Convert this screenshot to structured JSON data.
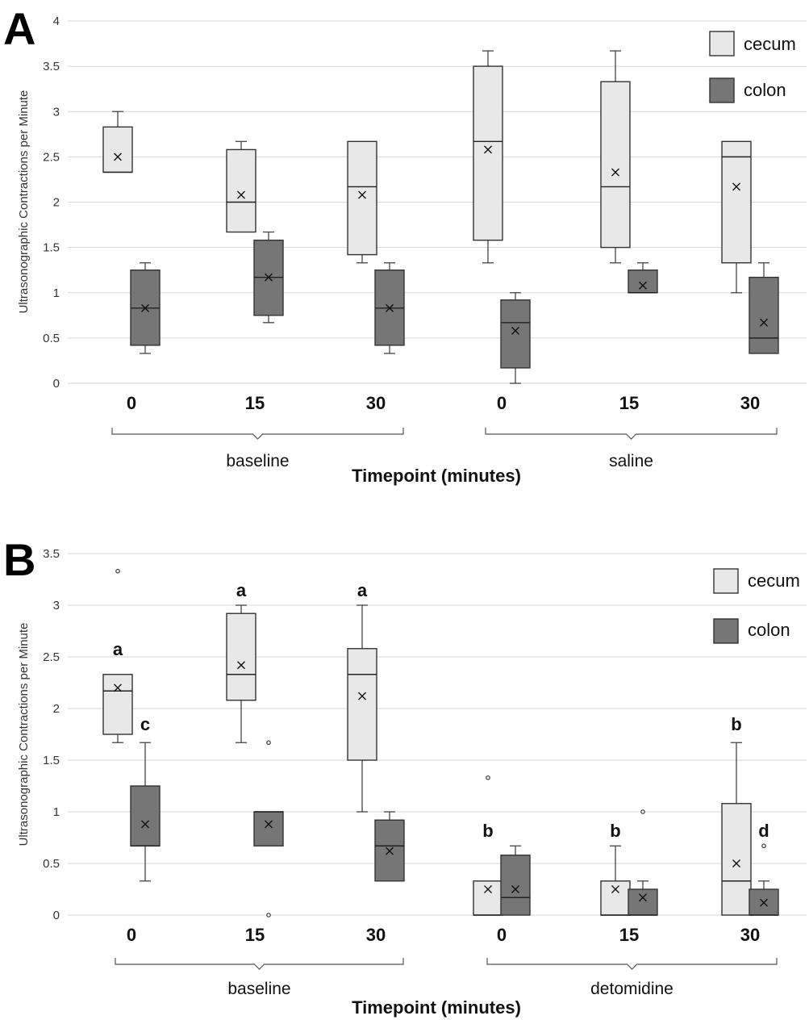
{
  "chart_data": [
    {
      "type": "box",
      "panel_label": "A",
      "ylabel": "Ultrasonographic Contractions per Minute",
      "xlabel": "Timepoint (minutes)",
      "ylim": [
        0,
        4
      ],
      "yticks": [
        "0",
        "0.5",
        "1",
        "1.5",
        "2",
        "2.5",
        "3",
        "3.5",
        "4"
      ],
      "ytick_values": [
        0,
        0.5,
        1,
        1.5,
        2,
        2.5,
        3,
        3.5,
        4
      ],
      "grid": true,
      "legend_position": "top-right",
      "categories": [
        "0",
        "15",
        "30",
        "0",
        "15",
        "30"
      ],
      "groups": [
        {
          "label": "baseline",
          "categories": [
            0,
            1,
            2
          ]
        },
        {
          "label": "saline",
          "categories": [
            3,
            4,
            5
          ]
        }
      ],
      "series": [
        {
          "name": "cecum",
          "color": "#e8e8e8",
          "boxes": [
            {
              "min": 2.33,
              "q1": 2.33,
              "median": 2.33,
              "q3": 2.83,
              "max": 3.0,
              "mean": 2.5,
              "outliers": []
            },
            {
              "min": 1.67,
              "q1": 1.67,
              "median": 2.0,
              "q3": 2.58,
              "max": 2.67,
              "mean": 2.08,
              "outliers": []
            },
            {
              "min": 1.33,
              "q1": 1.42,
              "median": 2.17,
              "q3": 2.67,
              "max": 2.67,
              "mean": 2.08,
              "outliers": []
            },
            {
              "min": 1.33,
              "q1": 1.58,
              "median": 2.67,
              "q3": 3.5,
              "max": 3.67,
              "mean": 2.58,
              "outliers": []
            },
            {
              "min": 1.33,
              "q1": 1.5,
              "median": 2.17,
              "q3": 3.33,
              "max": 3.67,
              "mean": 2.33,
              "outliers": []
            },
            {
              "min": 1.0,
              "q1": 1.33,
              "median": 2.5,
              "q3": 2.67,
              "max": 2.67,
              "mean": 2.17,
              "outliers": []
            }
          ]
        },
        {
          "name": "colon",
          "color": "#767676",
          "boxes": [
            {
              "min": 0.33,
              "q1": 0.42,
              "median": 0.83,
              "q3": 1.25,
              "max": 1.33,
              "mean": 0.83,
              "outliers": []
            },
            {
              "min": 0.67,
              "q1": 0.75,
              "median": 1.17,
              "q3": 1.58,
              "max": 1.67,
              "mean": 1.17,
              "outliers": []
            },
            {
              "min": 0.33,
              "q1": 0.42,
              "median": 0.83,
              "q3": 1.25,
              "max": 1.33,
              "mean": 0.83,
              "outliers": []
            },
            {
              "min": 0.0,
              "q1": 0.17,
              "median": 0.67,
              "q3": 0.92,
              "max": 1.0,
              "mean": 0.58,
              "outliers": []
            },
            {
              "min": 1.0,
              "q1": 1.0,
              "median": 1.0,
              "q3": 1.25,
              "max": 1.33,
              "mean": 1.08,
              "outliers": []
            },
            {
              "min": 0.33,
              "q1": 0.33,
              "median": 0.5,
              "q3": 1.17,
              "max": 1.33,
              "mean": 0.67,
              "outliers": []
            }
          ]
        }
      ],
      "annotations": []
    },
    {
      "type": "box",
      "panel_label": "B",
      "ylabel": "Ultrasonographic Contractions per Minute",
      "xlabel": "Timepoint (minutes)",
      "ylim": [
        0,
        3.5
      ],
      "yticks": [
        "0",
        "0.5",
        "1",
        "1.5",
        "2",
        "2.5",
        "3",
        "3.5"
      ],
      "ytick_values": [
        0,
        0.5,
        1,
        1.5,
        2,
        2.5,
        3,
        3.5
      ],
      "grid": true,
      "legend_position": "top-right",
      "categories": [
        "0",
        "15",
        "30",
        "0",
        "15",
        "30"
      ],
      "groups": [
        {
          "label": "baseline",
          "categories": [
            0,
            1,
            2
          ]
        },
        {
          "label": "detomidine",
          "categories": [
            3,
            4,
            5
          ]
        }
      ],
      "series": [
        {
          "name": "cecum",
          "color": "#e8e8e8",
          "boxes": [
            {
              "min": 1.67,
              "q1": 1.75,
              "median": 2.17,
              "q3": 2.33,
              "max": 2.33,
              "mean": 2.2,
              "outliers": [
                3.33
              ]
            },
            {
              "min": 1.67,
              "q1": 2.08,
              "median": 2.33,
              "q3": 2.92,
              "max": 3.0,
              "mean": 2.42,
              "outliers": []
            },
            {
              "min": 1.0,
              "q1": 1.5,
              "median": 2.33,
              "q3": 2.58,
              "max": 3.0,
              "mean": 2.12,
              "outliers": []
            },
            {
              "min": 0.0,
              "q1": 0.0,
              "median": 0.0,
              "q3": 0.33,
              "max": 0.33,
              "mean": 0.25,
              "outliers": [
                1.33
              ]
            },
            {
              "min": 0.0,
              "q1": 0.0,
              "median": 0.0,
              "q3": 0.33,
              "max": 0.67,
              "mean": 0.25,
              "outliers": []
            },
            {
              "min": 0.0,
              "q1": 0.0,
              "median": 0.33,
              "q3": 1.08,
              "max": 1.67,
              "mean": 0.5,
              "outliers": []
            }
          ]
        },
        {
          "name": "colon",
          "color": "#767676",
          "boxes": [
            {
              "min": 0.33,
              "q1": 0.67,
              "median": 0.67,
              "q3": 1.25,
              "max": 1.67,
              "mean": 0.88,
              "outliers": []
            },
            {
              "min": 0.67,
              "q1": 0.67,
              "median": 1.0,
              "q3": 1.0,
              "max": 1.0,
              "mean": 0.88,
              "outliers": [
                1.67,
                0.0
              ]
            },
            {
              "min": 0.33,
              "q1": 0.33,
              "median": 0.67,
              "q3": 0.92,
              "max": 1.0,
              "mean": 0.62,
              "outliers": []
            },
            {
              "min": 0.0,
              "q1": 0.0,
              "median": 0.17,
              "q3": 0.58,
              "max": 0.67,
              "mean": 0.25,
              "outliers": []
            },
            {
              "min": 0.0,
              "q1": 0.0,
              "median": 0.0,
              "q3": 0.25,
              "max": 0.33,
              "mean": 0.17,
              "outliers": [
                1.0
              ]
            },
            {
              "min": 0.0,
              "q1": 0.0,
              "median": 0.0,
              "q3": 0.25,
              "max": 0.33,
              "mean": 0.12,
              "outliers": [
                0.67
              ]
            }
          ]
        }
      ],
      "annotations": [
        {
          "text": "a",
          "category": 0,
          "series": 0,
          "y": 2.58
        },
        {
          "text": "c",
          "category": 0,
          "series": 1,
          "y": 1.85
        },
        {
          "text": "a",
          "category": 1,
          "series": 0,
          "y": 3.15
        },
        {
          "text": "a",
          "category": 2,
          "series": 0,
          "y": 3.15
        },
        {
          "text": "b",
          "category": 3,
          "series": 0,
          "y": 0.82
        },
        {
          "text": "b",
          "category": 4,
          "series": 0,
          "y": 0.82
        },
        {
          "text": "b",
          "category": 5,
          "series": 0,
          "y": 1.85
        },
        {
          "text": "d",
          "category": 5,
          "series": 1,
          "y": 0.82
        }
      ]
    }
  ]
}
